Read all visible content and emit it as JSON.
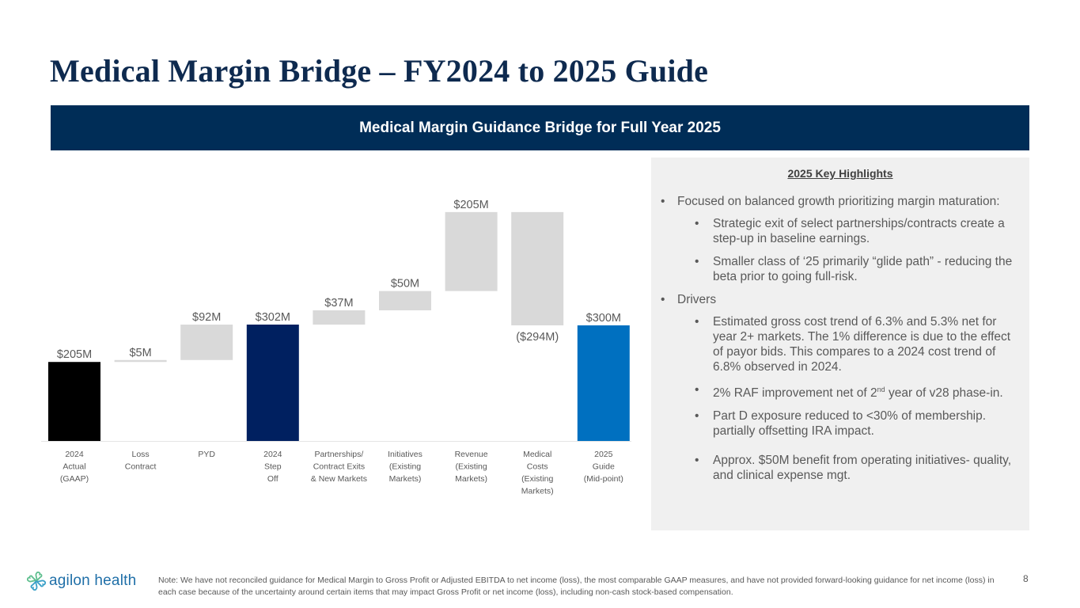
{
  "slide": {
    "title": "Medical Margin Bridge – FY2024 to 2025 Guide",
    "banner": "Medical Margin Guidance Bridge for Full Year 2025",
    "page_number": "8"
  },
  "chart_data": {
    "type": "bar",
    "subtype": "waterfall",
    "title": "Medical Margin Guidance Bridge for Full Year 2025",
    "xlabel": "",
    "ylabel": "",
    "units": "$M",
    "ylim": [
      0,
      620
    ],
    "grid": false,
    "legend": "none",
    "categories": [
      [
        "2024",
        "Actual",
        "(GAAP)"
      ],
      [
        "Loss",
        "Contract"
      ],
      [
        "PYD"
      ],
      [
        "2024",
        "Step",
        "Off"
      ],
      [
        "Partnerships/",
        "Contract Exits",
        "& New Markets"
      ],
      [
        "Initiatives",
        "(Existing",
        "Markets)"
      ],
      [
        "Revenue",
        "(Existing",
        "Markets)"
      ],
      [
        "Medical",
        "Costs",
        "(Existing",
        "Markets)"
      ],
      [
        "2025",
        "Guide",
        "(Mid-point)"
      ]
    ],
    "bars": [
      {
        "label": "$205M",
        "kind": "total",
        "start": 0,
        "end": 205,
        "color": "#000000"
      },
      {
        "label": "$5M",
        "kind": "delta",
        "start": 205,
        "end": 210,
        "color": "#d9d9d9"
      },
      {
        "label": "$92M",
        "kind": "delta",
        "start": 210,
        "end": 302,
        "color": "#d9d9d9"
      },
      {
        "label": "$302M",
        "kind": "total",
        "start": 0,
        "end": 302,
        "color": "#002060"
      },
      {
        "label": "$37M",
        "kind": "delta",
        "start": 302,
        "end": 339,
        "color": "#d9d9d9"
      },
      {
        "label": "$50M",
        "kind": "delta",
        "start": 339,
        "end": 389,
        "color": "#d9d9d9"
      },
      {
        "label": "$205M",
        "kind": "delta",
        "start": 389,
        "end": 594,
        "color": "#d9d9d9"
      },
      {
        "label": "($294M)",
        "kind": "delta",
        "start": 594,
        "end": 300,
        "color": "#d9d9d9"
      },
      {
        "label": "$300M",
        "kind": "total",
        "start": 0,
        "end": 300,
        "color": "#0070c0"
      }
    ]
  },
  "highlights": {
    "heading": "2025 Key Highlights",
    "items": [
      {
        "level": 1,
        "text": "Focused on balanced growth prioritizing margin maturation:"
      },
      {
        "level": 2,
        "text": "Strategic exit of select partnerships/contracts create a step-up in baseline earnings."
      },
      {
        "level": 2,
        "text": "Smaller class of ‘25 primarily “glide path” - reducing the beta prior to going full-risk."
      },
      {
        "level": 1,
        "text": "Drivers"
      },
      {
        "level": 2,
        "text": "Estimated gross cost trend of 6.3% and 5.3% net for year 2+ markets.  The 1% difference is due to the effect of payor bids. This compares to a 2024 cost trend of 6.8% observed in 2024."
      },
      {
        "level": 2,
        "text_before": "2% RAF improvement net of 2",
        "sup": "nd",
        "text_after": " year of v28 phase-in."
      },
      {
        "level": 2,
        "text": "Part D exposure reduced to <30% of membership. partially offsetting IRA impact."
      },
      {
        "level": 2,
        "text": "Approx. $50M benefit from operating initiatives- quality, and clinical expense mgt."
      }
    ],
    "bullet": "•"
  },
  "footer": {
    "logo_text": "agilon health",
    "logo_icon": "heart-cluster-icon",
    "note": "Note: We have not reconciled guidance for Medical Margin to Gross Profit or Adjusted EBITDA to net income (loss), the most comparable GAAP measures, and have not provided forward-looking guidance for net income (loss) in each case because of the uncertainty around certain items that may impact Gross Profit or net income (loss), including non-cash stock-based compensation."
  },
  "colors": {
    "title": "#0e2a4f",
    "banner_bg": "#002d57",
    "panel_bg": "#f0f0f0",
    "delta_bar": "#d9d9d9",
    "actual_bar": "#000000",
    "step_off_bar": "#002060",
    "guide_bar": "#0070c0",
    "logo": "#1f6fa8"
  }
}
